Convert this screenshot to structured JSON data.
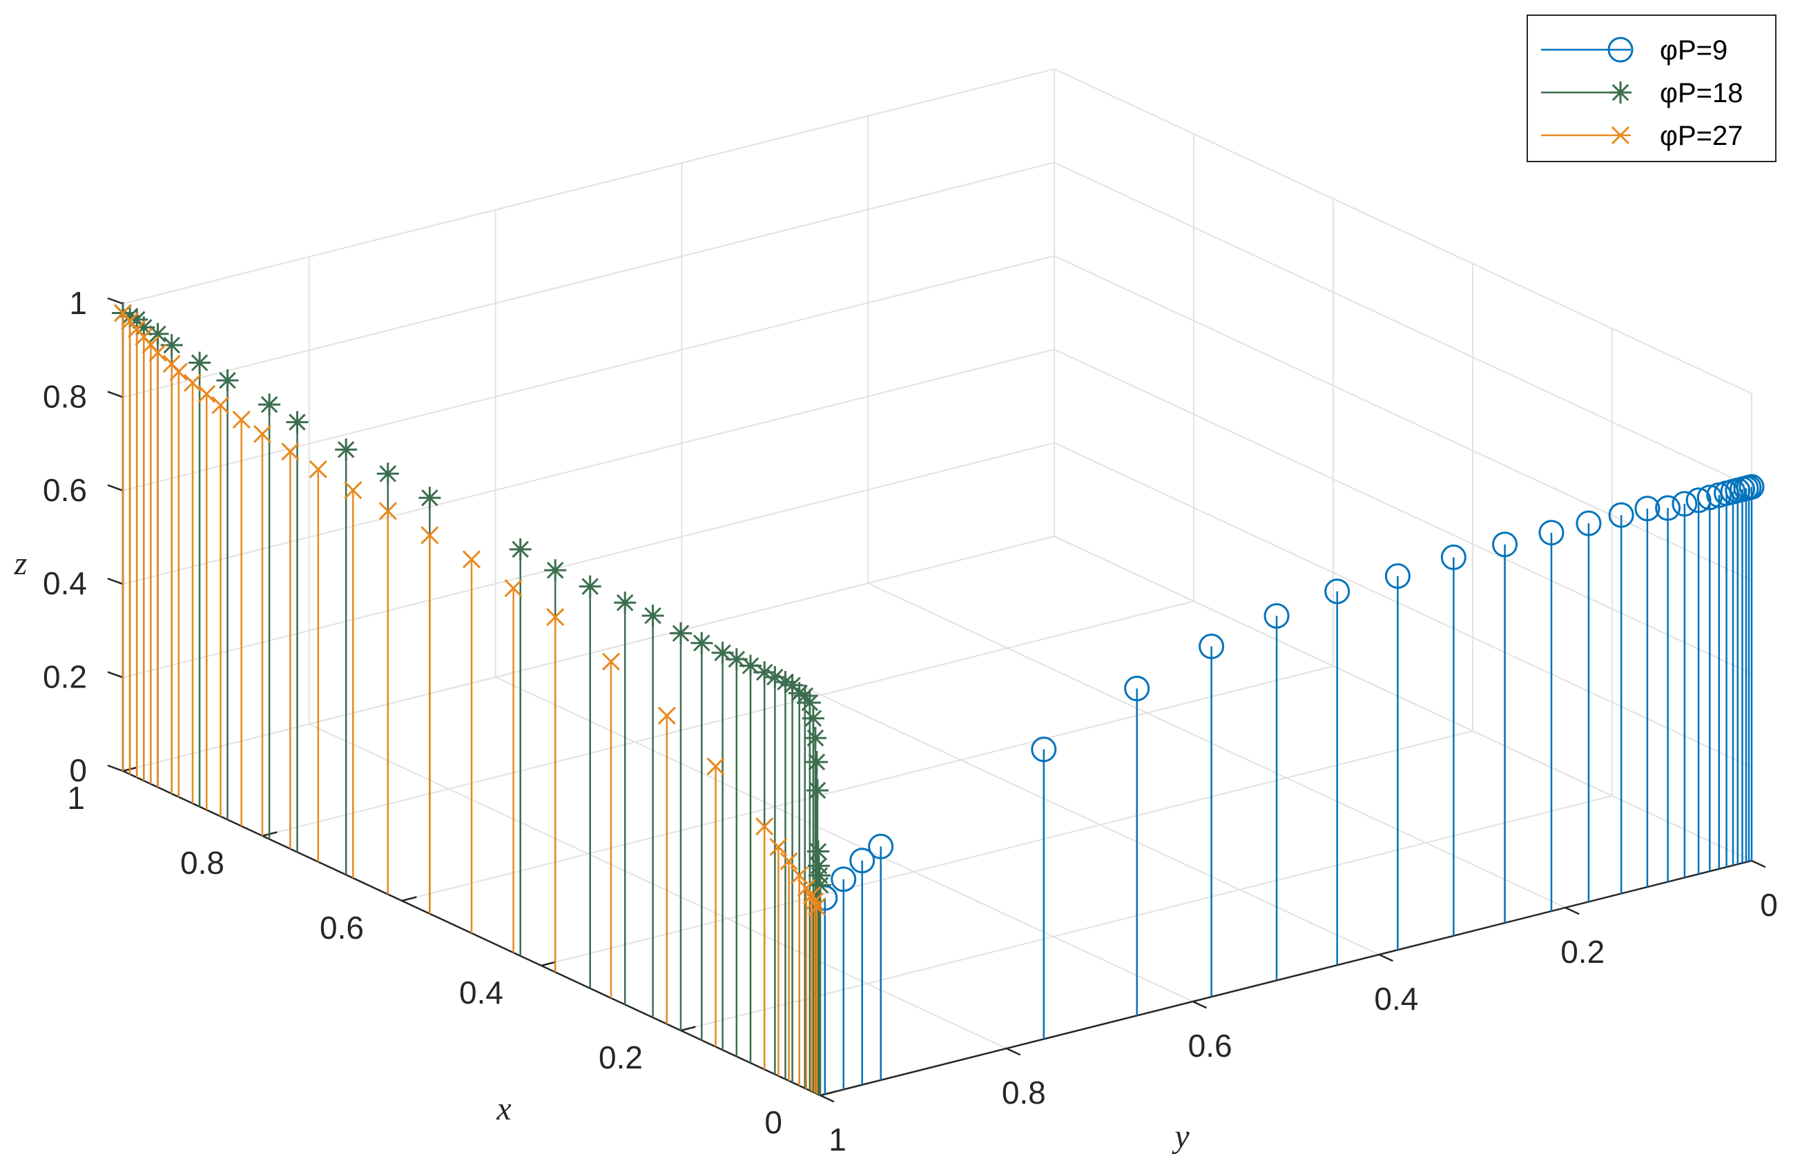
{
  "chart_data": {
    "type": "stem3",
    "xlabel": "x",
    "ylabel": "y",
    "zlabel": "z",
    "xlim": [
      0,
      1
    ],
    "ylim": [
      0,
      1
    ],
    "zlim": [
      0,
      1
    ],
    "xticks": [
      "0",
      "0.2",
      "0.4",
      "0.6",
      "0.8",
      "1"
    ],
    "yticks": [
      "0",
      "0.2",
      "0.4",
      "0.6",
      "0.8",
      "1"
    ],
    "zticks": [
      "0",
      "0.2",
      "0.4",
      "0.6",
      "0.8",
      "1"
    ],
    "grid": true,
    "legend_position": "top-right",
    "colors": {
      "series1": "#0072BD",
      "series2": "#3B6E4E",
      "series3": "#E8891E"
    },
    "series": [
      {
        "name": "φP=9",
        "marker": "circle",
        "points": [
          {
            "x": 0.0,
            "y": 0.0,
            "z": 0.8
          },
          {
            "x": 0.0,
            "y": 0.003,
            "z": 0.8
          },
          {
            "x": 0.0,
            "y": 0.006,
            "z": 0.8
          },
          {
            "x": 0.0,
            "y": 0.01,
            "z": 0.8
          },
          {
            "x": 0.0,
            "y": 0.015,
            "z": 0.8
          },
          {
            "x": 0.0,
            "y": 0.02,
            "z": 0.8
          },
          {
            "x": 0.0,
            "y": 0.027,
            "z": 0.8
          },
          {
            "x": 0.0,
            "y": 0.035,
            "z": 0.8
          },
          {
            "x": 0.0,
            "y": 0.045,
            "z": 0.8
          },
          {
            "x": 0.0,
            "y": 0.057,
            "z": 0.8
          },
          {
            "x": 0.0,
            "y": 0.072,
            "z": 0.8
          },
          {
            "x": 0.0,
            "y": 0.09,
            "z": 0.8
          },
          {
            "x": 0.0,
            "y": 0.112,
            "z": 0.81
          },
          {
            "x": 0.0,
            "y": 0.14,
            "z": 0.81
          },
          {
            "x": 0.0,
            "y": 0.175,
            "z": 0.81
          },
          {
            "x": 0.0,
            "y": 0.215,
            "z": 0.81
          },
          {
            "x": 0.0,
            "y": 0.265,
            "z": 0.81
          },
          {
            "x": 0.0,
            "y": 0.32,
            "z": 0.81
          },
          {
            "x": 0.0,
            "y": 0.38,
            "z": 0.8
          },
          {
            "x": 0.0,
            "y": 0.445,
            "z": 0.8
          },
          {
            "x": 0.0,
            "y": 0.51,
            "z": 0.78
          },
          {
            "x": 0.0,
            "y": 0.58,
            "z": 0.75
          },
          {
            "x": 0.0,
            "y": 0.66,
            "z": 0.7
          },
          {
            "x": 0.0,
            "y": 0.76,
            "z": 0.62
          },
          {
            "x": 0.0,
            "y": 0.935,
            "z": 0.5
          },
          {
            "x": 0.0,
            "y": 0.955,
            "z": 0.48
          },
          {
            "x": 0.0,
            "y": 0.975,
            "z": 0.45
          },
          {
            "x": 0.0,
            "y": 0.995,
            "z": 0.42
          }
        ]
      },
      {
        "name": "φP=18",
        "marker": "asterisk",
        "points": [
          {
            "x": 1.0,
            "y": 1.0,
            "z": 0.98
          },
          {
            "x": 0.99,
            "y": 1.0,
            "z": 0.98
          },
          {
            "x": 0.98,
            "y": 1.0,
            "z": 0.98
          },
          {
            "x": 0.97,
            "y": 1.0,
            "z": 0.97
          },
          {
            "x": 0.95,
            "y": 1.0,
            "z": 0.97
          },
          {
            "x": 0.93,
            "y": 1.0,
            "z": 0.96
          },
          {
            "x": 0.89,
            "y": 1.0,
            "z": 0.95
          },
          {
            "x": 0.85,
            "y": 1.0,
            "z": 0.94
          },
          {
            "x": 0.79,
            "y": 1.0,
            "z": 0.93
          },
          {
            "x": 0.75,
            "y": 1.0,
            "z": 0.92
          },
          {
            "x": 0.68,
            "y": 1.0,
            "z": 0.91
          },
          {
            "x": 0.62,
            "y": 1.0,
            "z": 0.9
          },
          {
            "x": 0.56,
            "y": 1.0,
            "z": 0.89
          },
          {
            "x": 0.43,
            "y": 1.0,
            "z": 0.87
          },
          {
            "x": 0.38,
            "y": 1.0,
            "z": 0.86
          },
          {
            "x": 0.33,
            "y": 1.0,
            "z": 0.86
          },
          {
            "x": 0.28,
            "y": 1.0,
            "z": 0.86
          },
          {
            "x": 0.24,
            "y": 1.0,
            "z": 0.86
          },
          {
            "x": 0.2,
            "y": 1.0,
            "z": 0.85
          },
          {
            "x": 0.17,
            "y": 1.0,
            "z": 0.85
          },
          {
            "x": 0.14,
            "y": 1.0,
            "z": 0.85
          },
          {
            "x": 0.12,
            "y": 1.0,
            "z": 0.85
          },
          {
            "x": 0.1,
            "y": 1.0,
            "z": 0.85
          },
          {
            "x": 0.08,
            "y": 1.0,
            "z": 0.85
          },
          {
            "x": 0.065,
            "y": 1.0,
            "z": 0.85
          },
          {
            "x": 0.05,
            "y": 1.0,
            "z": 0.85
          },
          {
            "x": 0.04,
            "y": 1.0,
            "z": 0.85
          },
          {
            "x": 0.03,
            "y": 1.0,
            "z": 0.84
          },
          {
            "x": 0.022,
            "y": 1.0,
            "z": 0.84
          },
          {
            "x": 0.015,
            "y": 1.0,
            "z": 0.83
          },
          {
            "x": 0.01,
            "y": 1.0,
            "z": 0.8
          },
          {
            "x": 0.007,
            "y": 1.0,
            "z": 0.76
          },
          {
            "x": 0.005,
            "y": 1.0,
            "z": 0.71
          },
          {
            "x": 0.004,
            "y": 1.0,
            "z": 0.65
          },
          {
            "x": 0.003,
            "y": 1.0,
            "z": 0.52
          },
          {
            "x": 0.002,
            "y": 1.0,
            "z": 0.49
          },
          {
            "x": 0.001,
            "y": 1.0,
            "z": 0.47
          },
          {
            "x": 0.0,
            "y": 1.0,
            "z": 0.45
          }
        ]
      },
      {
        "name": "φP=27",
        "marker": "x",
        "points": [
          {
            "x": 1.0,
            "y": 1.0,
            "z": 0.98
          },
          {
            "x": 0.99,
            "y": 1.0,
            "z": 0.97
          },
          {
            "x": 0.98,
            "y": 1.0,
            "z": 0.96
          },
          {
            "x": 0.97,
            "y": 1.0,
            "z": 0.95
          },
          {
            "x": 0.96,
            "y": 1.0,
            "z": 0.94
          },
          {
            "x": 0.95,
            "y": 1.0,
            "z": 0.93
          },
          {
            "x": 0.93,
            "y": 1.0,
            "z": 0.92
          },
          {
            "x": 0.92,
            "y": 1.0,
            "z": 0.91
          },
          {
            "x": 0.9,
            "y": 1.0,
            "z": 0.9
          },
          {
            "x": 0.88,
            "y": 1.0,
            "z": 0.89
          },
          {
            "x": 0.86,
            "y": 1.0,
            "z": 0.88
          },
          {
            "x": 0.83,
            "y": 1.0,
            "z": 0.87
          },
          {
            "x": 0.8,
            "y": 1.0,
            "z": 0.86
          },
          {
            "x": 0.76,
            "y": 1.0,
            "z": 0.85
          },
          {
            "x": 0.72,
            "y": 1.0,
            "z": 0.84
          },
          {
            "x": 0.67,
            "y": 1.0,
            "z": 0.83
          },
          {
            "x": 0.62,
            "y": 1.0,
            "z": 0.82
          },
          {
            "x": 0.56,
            "y": 1.0,
            "z": 0.81
          },
          {
            "x": 0.5,
            "y": 1.0,
            "z": 0.8
          },
          {
            "x": 0.44,
            "y": 1.0,
            "z": 0.78
          },
          {
            "x": 0.38,
            "y": 1.0,
            "z": 0.76
          },
          {
            "x": 0.3,
            "y": 1.0,
            "z": 0.72
          },
          {
            "x": 0.22,
            "y": 1.0,
            "z": 0.66
          },
          {
            "x": 0.15,
            "y": 1.0,
            "z": 0.6
          },
          {
            "x": 0.08,
            "y": 1.0,
            "z": 0.52
          },
          {
            "x": 0.06,
            "y": 1.0,
            "z": 0.49
          },
          {
            "x": 0.045,
            "y": 1.0,
            "z": 0.47
          },
          {
            "x": 0.03,
            "y": 1.0,
            "z": 0.45
          },
          {
            "x": 0.02,
            "y": 1.0,
            "z": 0.43
          },
          {
            "x": 0.012,
            "y": 1.0,
            "z": 0.42
          },
          {
            "x": 0.008,
            "y": 1.0,
            "z": 0.41
          },
          {
            "x": 0.005,
            "y": 1.0,
            "z": 0.4
          }
        ]
      }
    ]
  }
}
